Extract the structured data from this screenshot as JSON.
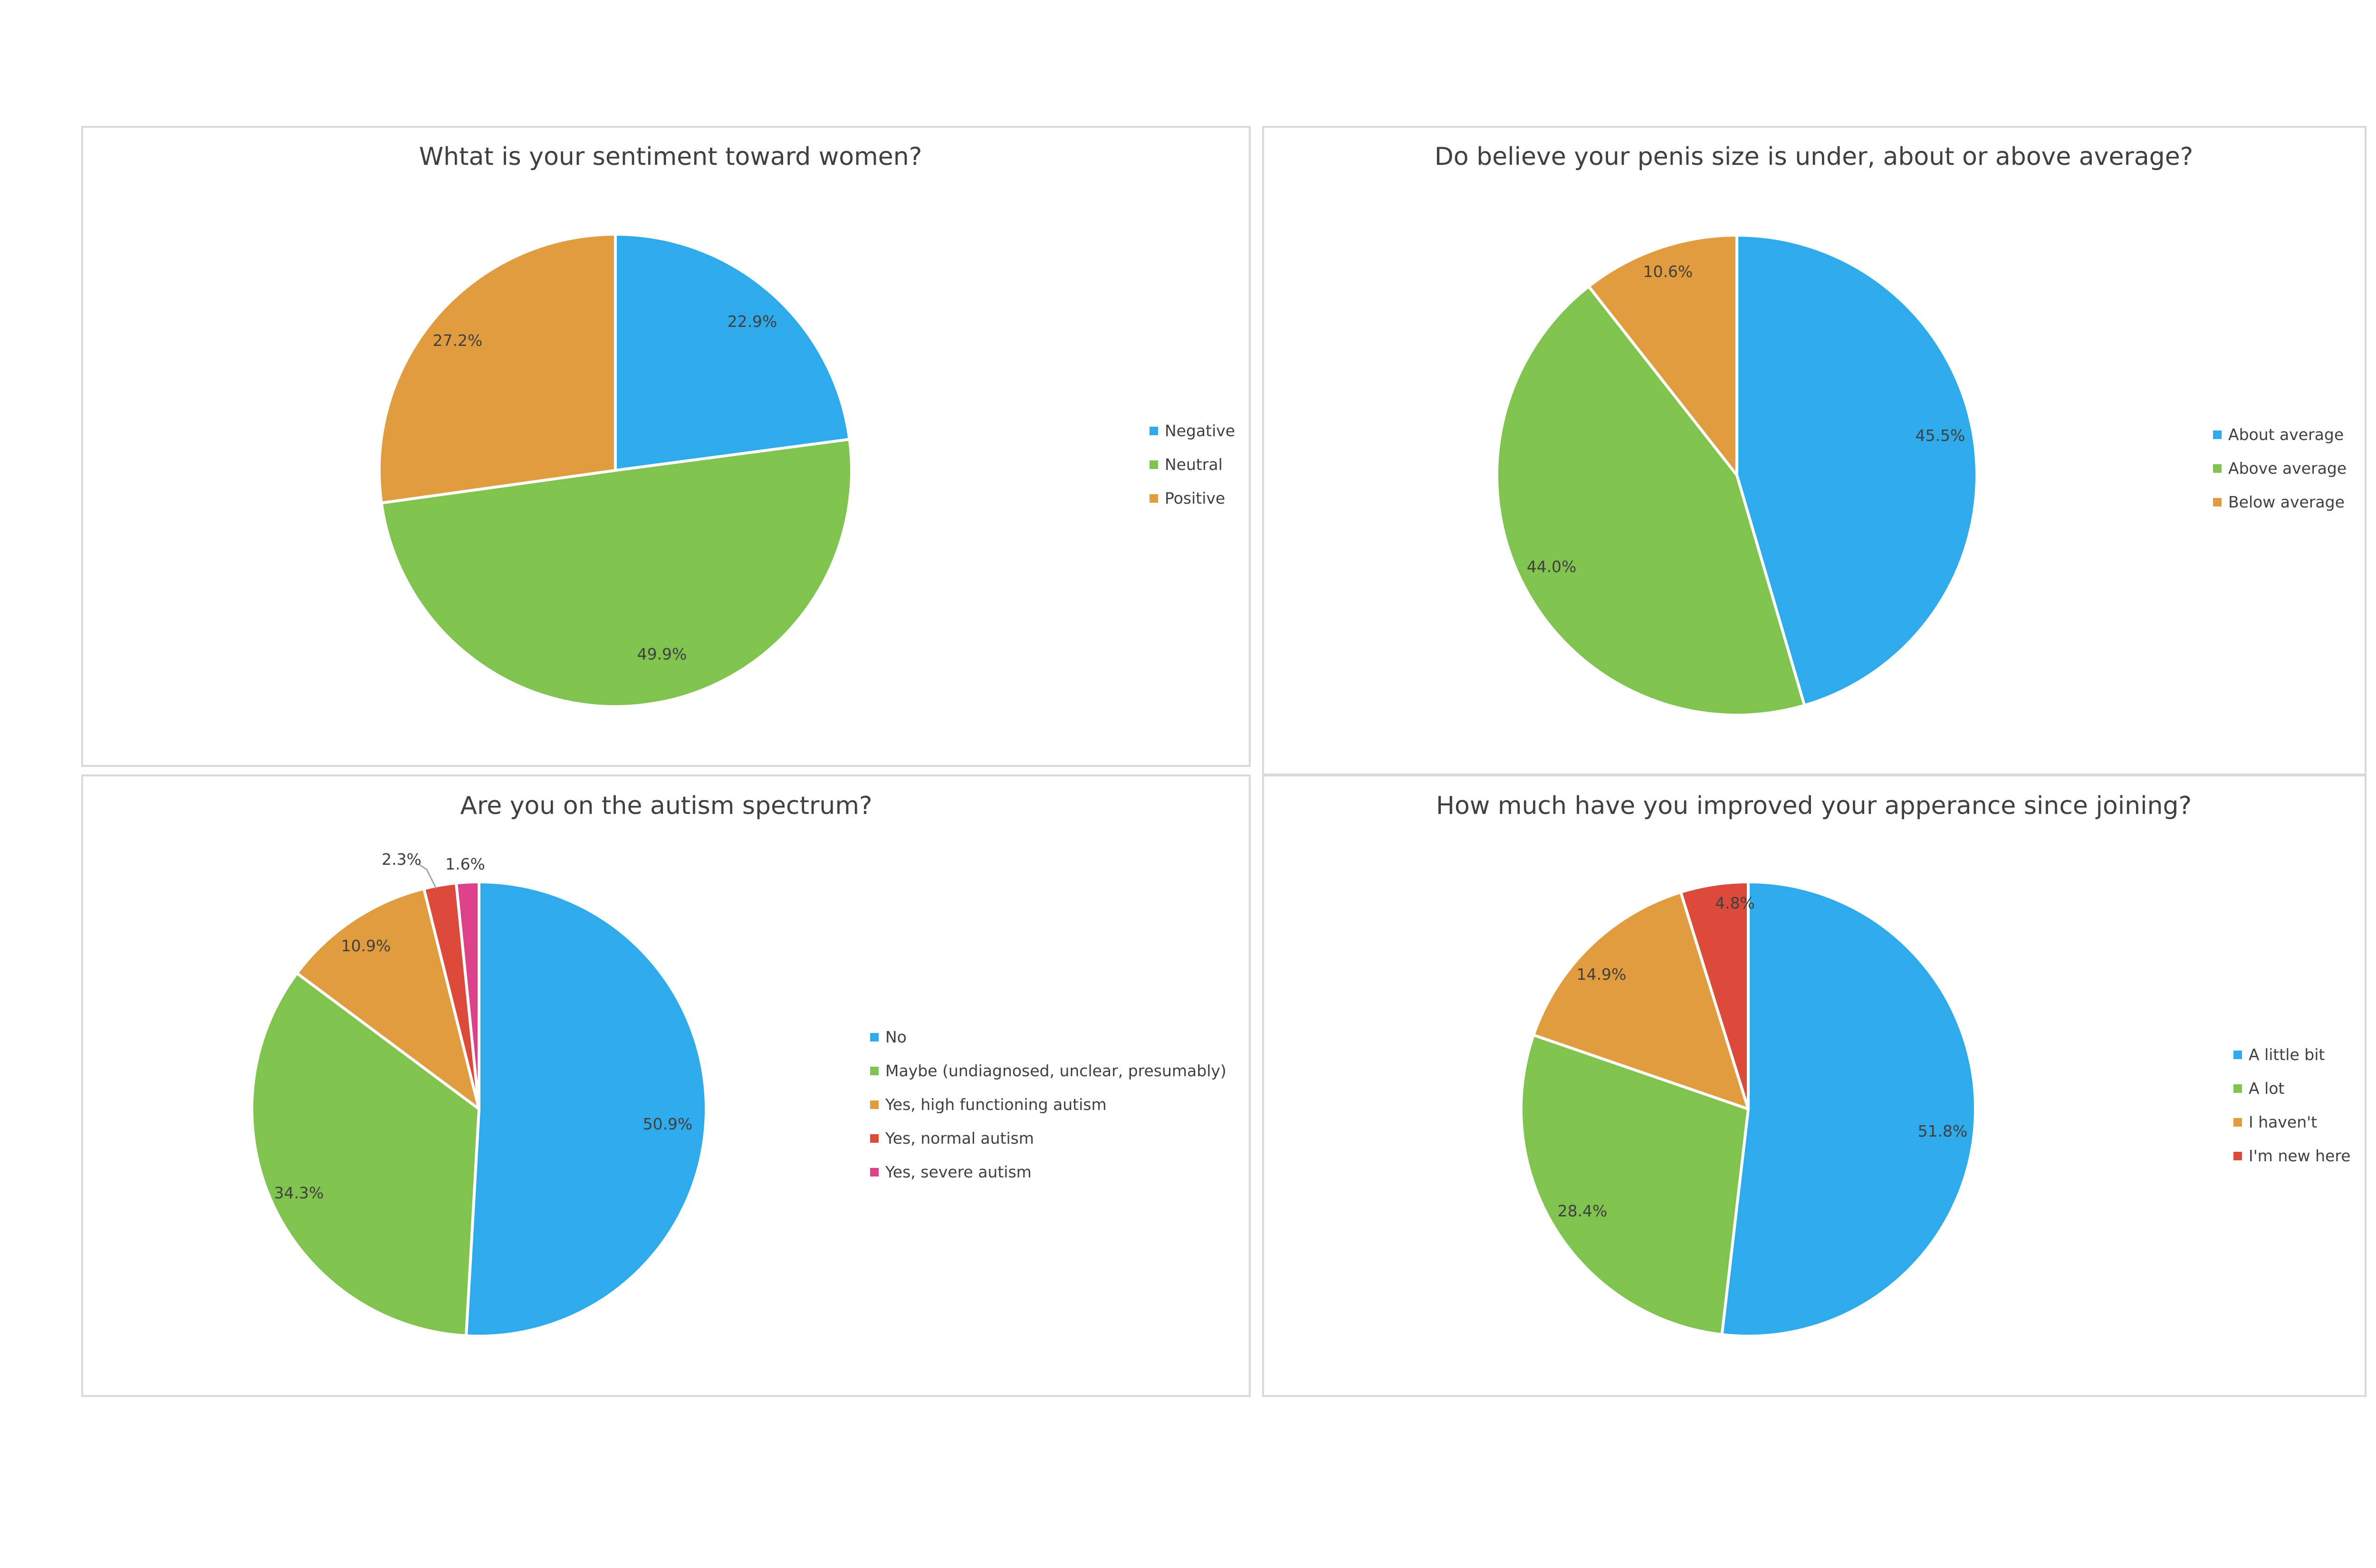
{
  "colors": {
    "blue": "#2faaea",
    "green": "#80c34f",
    "orange": "#e09c3e",
    "red": "#dc4a3a",
    "pink": "#dc4287"
  },
  "chart_data": [
    {
      "type": "pie",
      "title": "Whtat is your sentiment toward women?",
      "legend_position": "right",
      "series": [
        {
          "name": "Negative",
          "value": 22.9,
          "label": "22.9%",
          "color": "#2faaea"
        },
        {
          "name": "Neutral",
          "value": 49.9,
          "label": "49.9%",
          "color": "#80c34f"
        },
        {
          "name": "Positive",
          "value": 27.2,
          "label": "27.2%",
          "color": "#e09c3e"
        }
      ]
    },
    {
      "type": "pie",
      "title": "Do believe your penis size is under, about or above average?",
      "legend_position": "right",
      "series": [
        {
          "name": "About average",
          "value": 45.5,
          "label": "45.5%",
          "color": "#2faaea"
        },
        {
          "name": "Above average",
          "value": 44.0,
          "label": "44.0%",
          "color": "#80c34f"
        },
        {
          "name": "Below average",
          "value": 10.6,
          "label": "10.6%",
          "color": "#e09c3e"
        }
      ]
    },
    {
      "type": "pie",
      "title": "Are you on the autism spectrum?",
      "legend_position": "right",
      "series": [
        {
          "name": "No",
          "value": 50.9,
          "label": "50.9%",
          "color": "#2faaea"
        },
        {
          "name": "Maybe (undiagnosed, unclear, presumably)",
          "value": 34.3,
          "label": "34.3%",
          "color": "#80c34f"
        },
        {
          "name": "Yes, high functioning autism",
          "value": 10.9,
          "label": "10.9%",
          "color": "#e09c3e"
        },
        {
          "name": "Yes, normal autism",
          "value": 2.3,
          "label": "2.3%",
          "color": "#dc4a3a"
        },
        {
          "name": "Yes, severe autism",
          "value": 1.6,
          "label": "1.6%",
          "color": "#dc4287"
        }
      ]
    },
    {
      "type": "pie",
      "title": "How much have you improved your apperance since joining?",
      "legend_position": "right",
      "series": [
        {
          "name": "A little bit",
          "value": 51.8,
          "label": "51.8%",
          "color": "#2faaea"
        },
        {
          "name": "A lot",
          "value": 28.4,
          "label": "28.4%",
          "color": "#80c34f"
        },
        {
          "name": "I haven't",
          "value": 14.9,
          "label": "14.9%",
          "color": "#e09c3e"
        },
        {
          "name": "I'm new here",
          "value": 4.8,
          "label": "4.8%",
          "color": "#dc4a3a"
        }
      ]
    }
  ]
}
